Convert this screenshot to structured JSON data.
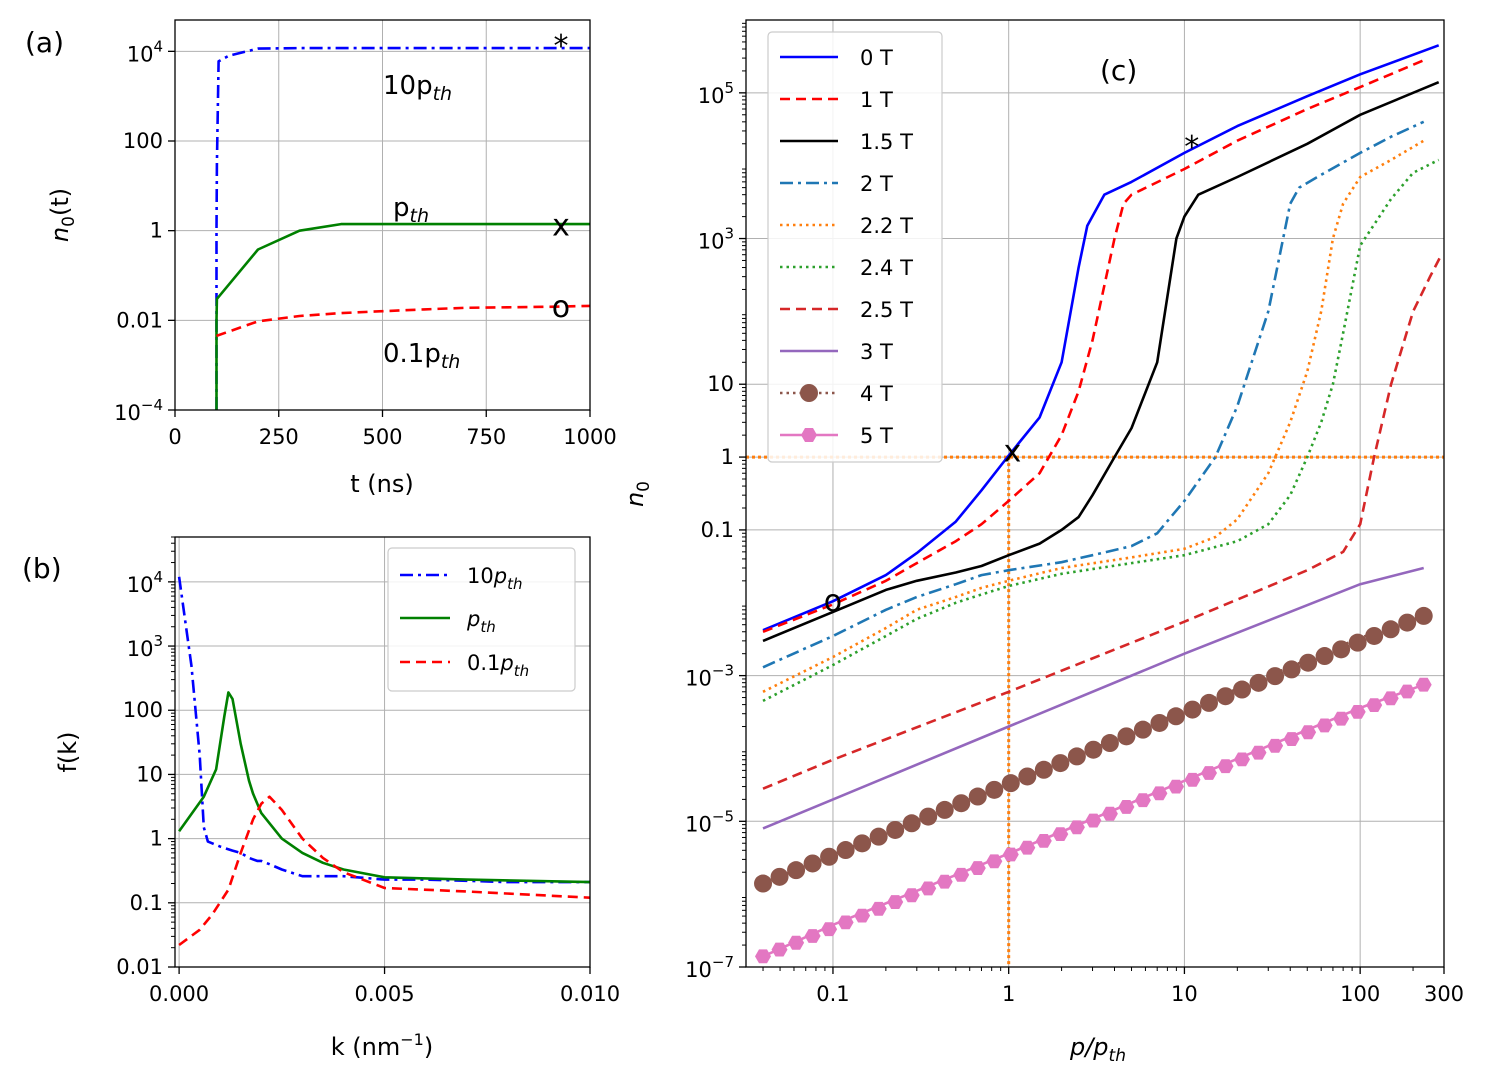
{
  "panels": {
    "a": {
      "label": "(a)",
      "xlabel": "t (ns)",
      "ylabel_main": "n",
      "ylabel_sub": "0",
      "ylabel_tail": "(t)",
      "xticks": [
        "0",
        "250",
        "500",
        "750",
        "1000"
      ],
      "yticks": [
        {
          "base": "10",
          "exp": "−4"
        },
        {
          "base": "0.01",
          "exp": ""
        },
        {
          "base": "1",
          "exp": ""
        },
        {
          "base": "100",
          "exp": ""
        },
        {
          "base": "10",
          "exp": "4"
        }
      ],
      "annotations": [
        {
          "main": "10p",
          "sub": "th"
        },
        {
          "main": "p",
          "sub": "th"
        },
        {
          "main": "0.1p",
          "sub": "th"
        }
      ],
      "markers": [
        "*",
        "x",
        "o"
      ]
    },
    "b": {
      "label": "(b)",
      "xlabel_main": "k (nm",
      "xlabel_sup": "−1",
      "xlabel_tail": ")",
      "ylabel": "f(k)",
      "xticks": [
        "0.000",
        "0.005",
        "0.010"
      ],
      "yticks": [
        {
          "base": "0.01",
          "exp": ""
        },
        {
          "base": "0.1",
          "exp": ""
        },
        {
          "base": "1",
          "exp": ""
        },
        {
          "base": "10",
          "exp": ""
        },
        {
          "base": "100",
          "exp": ""
        },
        {
          "base": "10",
          "exp": "3"
        },
        {
          "base": "10",
          "exp": "4"
        }
      ],
      "legend": [
        {
          "main": "10p",
          "sub": "th"
        },
        {
          "main": "p",
          "sub": "th"
        },
        {
          "main": "0.1p",
          "sub": "th"
        }
      ]
    },
    "c": {
      "label": "(c)",
      "xlabel_main": "p/p",
      "xlabel_sub": "th",
      "ylabel_main": "n",
      "ylabel_sub": "0",
      "xticks": [
        "0.1",
        "1",
        "10",
        "100",
        "300"
      ],
      "yticks": [
        {
          "base": "10",
          "exp": "−7"
        },
        {
          "base": "10",
          "exp": "−5"
        },
        {
          "base": "10",
          "exp": "−3"
        },
        {
          "base": "0.1",
          "exp": ""
        },
        {
          "base": "1",
          "exp": ""
        },
        {
          "base": "10",
          "exp": ""
        },
        {
          "base": "10",
          "exp": "3"
        },
        {
          "base": "10",
          "exp": "5"
        }
      ],
      "legend": [
        "0 T",
        "1 T",
        "1.5 T",
        "2 T",
        "2.2 T",
        "2.4 T",
        "2.5 T",
        "3 T",
        "4 T",
        "5 T"
      ],
      "markers": [
        "*",
        "x",
        "o"
      ]
    }
  },
  "colors": {
    "blue": "#0000ff",
    "green": "#008000",
    "red": "#ff0000",
    "black": "#000000",
    "tab_blue": "#1f77b4",
    "tab_orange": "#ff7f0e",
    "tab_green": "#2ca02c",
    "tab_red": "#d62728",
    "tab_purple": "#9467bd",
    "tab_brown": "#8c564b",
    "tab_pink": "#e377c2",
    "grid": "#b0b0b0"
  },
  "chart_data": [
    {
      "type": "line",
      "title": "(a)",
      "xlabel": "t (ns)",
      "ylabel": "n0(t)",
      "xscale": "linear",
      "yscale": "log",
      "xlim": [
        0,
        1000
      ],
      "ylim": [
        0.0001,
        50000
      ],
      "series": [
        {
          "name": "10p_th",
          "style": "dashdot",
          "color": "#0000ff",
          "x": [
            100,
            100,
            101,
            105,
            130,
            200,
            300,
            500,
            1000
          ],
          "y": [
            0.0001,
            1,
            30,
            6000,
            8000,
            11500,
            11800,
            11800,
            11800
          ]
        },
        {
          "name": "p_th",
          "style": "solid",
          "color": "#008000",
          "x": [
            100,
            100,
            101,
            200,
            300,
            400,
            500,
            1000
          ],
          "y": [
            0.0001,
            0.01,
            0.03,
            0.38,
            1.0,
            1.4,
            1.4,
            1.4
          ]
        },
        {
          "name": "0.1p_th",
          "style": "dashed",
          "color": "#ff0000",
          "x": [
            100,
            200,
            300,
            400,
            500,
            600,
            700,
            800,
            900,
            1000
          ],
          "y": [
            0.0045,
            0.0095,
            0.0125,
            0.0145,
            0.016,
            0.0175,
            0.019,
            0.0195,
            0.02,
            0.021
          ]
        }
      ],
      "annotations": [
        {
          "text": "10p_th",
          "x": 500,
          "y": 1000
        },
        {
          "text": "p_th",
          "x": 550,
          "y": 4
        },
        {
          "text": "0.1p_th",
          "x": 500,
          "y": 0.001
        }
      ],
      "markers": [
        {
          "symbol": "*",
          "x": 930,
          "y": 13000
        },
        {
          "symbol": "x",
          "x": 930,
          "y": 1.3
        },
        {
          "symbol": "o",
          "x": 930,
          "y": 0.02
        }
      ]
    },
    {
      "type": "line",
      "title": "(b)",
      "xlabel": "k (nm^-1)",
      "ylabel": "f(k)",
      "xscale": "linear",
      "yscale": "log",
      "xlim": [
        -0.0001,
        0.01
      ],
      "ylim": [
        0.01,
        50000
      ],
      "legend_position": "upper right",
      "series": [
        {
          "name": "10p_th",
          "style": "dashdot",
          "color": "#0000ff",
          "x": [
            0.0,
            0.0003,
            0.0005,
            0.0006,
            0.0007,
            0.001,
            0.0013,
            0.0015,
            0.0017,
            0.0019,
            0.002,
            0.0022,
            0.0025,
            0.003,
            0.004,
            0.005,
            0.006,
            0.007,
            0.008,
            0.009,
            0.01
          ],
          "y": [
            12000,
            500,
            20,
            1.5,
            0.9,
            0.75,
            0.65,
            0.6,
            0.5,
            0.45,
            0.45,
            0.4,
            0.33,
            0.26,
            0.26,
            0.23,
            0.23,
            0.22,
            0.21,
            0.21,
            0.21
          ]
        },
        {
          "name": "p_th",
          "style": "solid",
          "color": "#008000",
          "x": [
            0.0,
            0.0006,
            0.0009,
            0.0011,
            0.0012,
            0.0013,
            0.0015,
            0.0017,
            0.0018,
            0.002,
            0.0025,
            0.003,
            0.0035,
            0.004,
            0.005,
            0.007,
            0.01
          ],
          "y": [
            1.3,
            4.5,
            12,
            80,
            190,
            150,
            30,
            8,
            5,
            2.5,
            1.0,
            0.6,
            0.42,
            0.33,
            0.25,
            0.23,
            0.21
          ]
        },
        {
          "name": "0.1p_th",
          "style": "dashed",
          "color": "#ff0000",
          "x": [
            0.0,
            0.0005,
            0.0008,
            0.0012,
            0.0015,
            0.0018,
            0.002,
            0.0022,
            0.0025,
            0.003,
            0.0035,
            0.004,
            0.005,
            0.007,
            0.01
          ],
          "y": [
            0.022,
            0.038,
            0.065,
            0.16,
            0.6,
            2.0,
            3.5,
            4.5,
            2.8,
            1.0,
            0.5,
            0.3,
            0.17,
            0.15,
            0.12
          ]
        }
      ]
    },
    {
      "type": "line",
      "title": "(c)",
      "xlabel": "p/p_th",
      "ylabel": "n0",
      "xscale": "log",
      "yscale": "log",
      "xlim": [
        0.032,
        300
      ],
      "ylim": [
        1e-07,
        1000000
      ],
      "legend_position": "upper left",
      "reference_lines": {
        "x": 1,
        "y": 1,
        "color": "#ff7f0e",
        "style": "dotted"
      },
      "series": [
        {
          "name": "0 T",
          "style": "solid",
          "color": "#0000ff",
          "x": [
            0.04,
            0.1,
            0.2,
            0.3,
            0.5,
            0.7,
            1.0,
            1.5,
            2.0,
            2.5,
            2.8,
            3.5,
            5,
            10,
            20,
            50,
            100,
            280
          ],
          "y": [
            0.0042,
            0.0105,
            0.024,
            0.048,
            0.13,
            0.35,
            1.05,
            3.5,
            20,
            400,
            1500,
            4000,
            6000,
            15000,
            35000,
            90000,
            180000,
            450000
          ]
        },
        {
          "name": "1 T",
          "style": "dashed",
          "color": "#ff0000",
          "x": [
            0.04,
            0.1,
            0.2,
            0.3,
            0.5,
            0.7,
            1.0,
            1.5,
            2.0,
            2.5,
            3.0,
            4.0,
            4.5,
            5.0,
            10,
            20,
            50,
            100,
            230
          ],
          "y": [
            0.004,
            0.0095,
            0.02,
            0.035,
            0.07,
            0.12,
            0.25,
            0.6,
            2.0,
            8,
            40,
            1000,
            3000,
            4000,
            9000,
            22000,
            60000,
            120000,
            280000
          ]
        },
        {
          "name": "1.5 T",
          "style": "solid",
          "color": "#000000",
          "x": [
            0.04,
            0.1,
            0.2,
            0.3,
            0.5,
            0.7,
            1.0,
            1.5,
            2.0,
            2.5,
            3.0,
            4.0,
            5.0,
            7.0,
            9.0,
            10.0,
            12,
            20,
            50,
            100,
            280
          ],
          "y": [
            0.003,
            0.0075,
            0.015,
            0.02,
            0.026,
            0.032,
            0.045,
            0.065,
            0.1,
            0.15,
            0.3,
            1.0,
            2.5,
            20,
            1000,
            2000,
            4000,
            7000,
            20000,
            50000,
            140000
          ]
        },
        {
          "name": "2 T",
          "style": "dashdot",
          "color": "#1f77b4",
          "x": [
            0.04,
            0.1,
            0.2,
            0.3,
            0.5,
            0.7,
            1.0,
            2.0,
            3.0,
            5.0,
            7.0,
            10,
            15,
            20,
            30,
            40,
            45,
            60,
            100,
            150,
            230
          ],
          "y": [
            0.0013,
            0.0035,
            0.008,
            0.012,
            0.018,
            0.024,
            0.028,
            0.036,
            0.045,
            0.06,
            0.09,
            0.25,
            1.0,
            5,
            100,
            3000,
            5000,
            7500,
            15000,
            25000,
            40000
          ]
        },
        {
          "name": "2.2 T",
          "style": "dotted",
          "color": "#ff7f0e",
          "x": [
            0.04,
            0.1,
            0.2,
            0.3,
            0.5,
            0.7,
            1.0,
            2.0,
            5.0,
            10,
            15,
            20,
            30,
            40,
            50,
            60,
            70,
            80,
            100,
            150,
            230
          ],
          "y": [
            0.0006,
            0.0018,
            0.0045,
            0.008,
            0.012,
            0.016,
            0.02,
            0.03,
            0.042,
            0.055,
            0.08,
            0.14,
            0.6,
            3,
            15,
            100,
            1000,
            3000,
            7000,
            12000,
            22000
          ]
        },
        {
          "name": "2.4 T",
          "style": "dotted",
          "color": "#2ca02c",
          "x": [
            0.04,
            0.1,
            0.2,
            0.3,
            0.5,
            0.7,
            1.0,
            2.0,
            5.0,
            10,
            20,
            30,
            40,
            50,
            60,
            70,
            80,
            100,
            150,
            200,
            280
          ],
          "y": [
            0.00045,
            0.0014,
            0.0035,
            0.006,
            0.01,
            0.013,
            0.017,
            0.025,
            0.035,
            0.045,
            0.07,
            0.12,
            0.3,
            1.0,
            3,
            10,
            50,
            800,
            3500,
            8000,
            12000
          ]
        },
        {
          "name": "2.5 T",
          "style": "dashed",
          "color": "#d62728",
          "x": [
            0.04,
            0.1,
            1.0,
            10,
            50,
            80,
            100,
            120,
            150,
            200,
            250,
            290
          ],
          "y": [
            2.8e-05,
            7e-05,
            0.0006,
            0.0055,
            0.028,
            0.05,
            0.12,
            1.0,
            10,
            100,
            300,
            600
          ]
        },
        {
          "name": "3 T",
          "style": "solid",
          "color": "#9467bd",
          "x": [
            0.04,
            0.1,
            1.0,
            10,
            100,
            230
          ],
          "y": [
            8e-06,
            2e-05,
            0.0002,
            0.002,
            0.018,
            0.03
          ]
        },
        {
          "name": "4 T",
          "style": "dotted-markers",
          "marker": "circle",
          "color": "#8c564b",
          "x": [
            0.04,
            0.1,
            1.0,
            10,
            100,
            230
          ],
          "y": [
            1.4e-06,
            3.5e-06,
            3.3e-05,
            0.00033,
            0.0033,
            0.0066
          ]
        },
        {
          "name": "5 T",
          "style": "solid-markers",
          "marker": "hexagon",
          "color": "#e377c2",
          "x": [
            0.04,
            0.1,
            1.0,
            10,
            100,
            230
          ],
          "y": [
            1.4e-07,
            3.8e-07,
            3.6e-06,
            3.6e-05,
            0.00036,
            0.00075
          ]
        }
      ],
      "markers": [
        {
          "symbol": "*",
          "x": 11,
          "y": 18000
        },
        {
          "symbol": "x",
          "x": 1.05,
          "y": 1.2
        },
        {
          "symbol": "o",
          "x": 0.1,
          "y": 0.0105
        }
      ]
    }
  ]
}
